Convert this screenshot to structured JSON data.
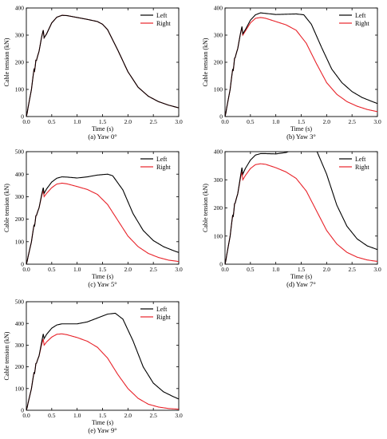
{
  "colors": {
    "left": "#000000",
    "right": "#e8232a"
  },
  "chart_data": [
    {
      "type": "line",
      "caption": "(a) Yaw 0°",
      "xlabel": "Time (s)",
      "ylabel": "Cable tension (kN)",
      "xlim": [
        0,
        3.0
      ],
      "ylim": [
        0,
        400
      ],
      "xticks": [
        "0.0",
        "0.5",
        "1.0",
        "1.5",
        "2.0",
        "2.5",
        "3.0"
      ],
      "yticks": [
        "0",
        "100",
        "200",
        "300",
        "400"
      ],
      "legend": "top-right",
      "series": [
        {
          "name": "Left",
          "color_key": "left",
          "x": [
            0,
            0.05,
            0.1,
            0.15,
            0.2,
            0.25,
            0.3,
            0.35,
            0.4,
            0.5,
            0.6,
            0.7,
            0.8,
            1.0,
            1.2,
            1.4,
            1.5,
            1.6,
            1.8,
            2.0,
            2.2,
            2.4,
            2.6,
            2.8,
            3.0
          ],
          "y": [
            0,
            40,
            80,
            150,
            190,
            240,
            270,
            290,
            305,
            345,
            366,
            373,
            372,
            365,
            358,
            350,
            340,
            320,
            245,
            165,
            108,
            75,
            55,
            42,
            32
          ]
        },
        {
          "name": "Right",
          "color_key": "right",
          "x": [
            0,
            0.05,
            0.1,
            0.15,
            0.2,
            0.25,
            0.3,
            0.35,
            0.4,
            0.5,
            0.6,
            0.7,
            0.8,
            1.0,
            1.2,
            1.4,
            1.5,
            1.6,
            1.8,
            2.0,
            2.2,
            2.4,
            2.6,
            2.8,
            3.0
          ],
          "y": [
            0,
            40,
            80,
            150,
            190,
            240,
            270,
            290,
            305,
            345,
            366,
            373,
            372,
            365,
            358,
            350,
            340,
            320,
            245,
            165,
            108,
            75,
            55,
            42,
            32
          ]
        }
      ]
    },
    {
      "type": "line",
      "caption": "(b) Yaw 3°",
      "xlabel": "Time (s)",
      "ylabel": "Cable tension (kN)",
      "xlim": [
        0,
        3.0
      ],
      "ylim": [
        0,
        400
      ],
      "xticks": [
        "0.0",
        "0.5",
        "1.0",
        "1.5",
        "2.0",
        "2.5",
        "3.0"
      ],
      "yticks": [
        "0",
        "100",
        "200",
        "300",
        "400"
      ],
      "legend": "top-right",
      "series": [
        {
          "name": "Left",
          "color_key": "left",
          "x": [
            0,
            0.05,
            0.1,
            0.15,
            0.2,
            0.25,
            0.3,
            0.35,
            0.4,
            0.5,
            0.6,
            0.7,
            0.8,
            1.0,
            1.2,
            1.4,
            1.55,
            1.7,
            1.9,
            2.1,
            2.3,
            2.5,
            2.7,
            2.9,
            3.0
          ],
          "y": [
            0,
            40,
            80,
            150,
            200,
            250,
            280,
            305,
            320,
            355,
            375,
            382,
            380,
            376,
            377,
            378,
            375,
            340,
            255,
            175,
            125,
            92,
            70,
            55,
            48
          ]
        },
        {
          "name": "Right",
          "color_key": "right",
          "x": [
            0,
            0.05,
            0.1,
            0.15,
            0.2,
            0.25,
            0.3,
            0.35,
            0.4,
            0.5,
            0.6,
            0.7,
            0.8,
            1.0,
            1.2,
            1.4,
            1.6,
            1.8,
            2.0,
            2.2,
            2.4,
            2.6,
            2.8,
            3.0
          ],
          "y": [
            0,
            40,
            80,
            150,
            200,
            250,
            280,
            300,
            315,
            345,
            362,
            365,
            362,
            350,
            338,
            318,
            270,
            195,
            125,
            82,
            55,
            38,
            26,
            18
          ]
        }
      ]
    },
    {
      "type": "line",
      "caption": "(c) Yaw 5°",
      "xlabel": "Time (s)",
      "ylabel": "Cable tension (kN)",
      "xlim": [
        0,
        3.0
      ],
      "ylim": [
        0,
        500
      ],
      "xticks": [
        "0.0",
        "0.5",
        "1.0",
        "1.5",
        "2.0",
        "2.5",
        "3.0"
      ],
      "yticks": [
        "0",
        "100",
        "200",
        "300",
        "400",
        "500"
      ],
      "legend": "top-right",
      "series": [
        {
          "name": "Left",
          "color_key": "left",
          "x": [
            0,
            0.05,
            0.1,
            0.15,
            0.2,
            0.25,
            0.3,
            0.35,
            0.4,
            0.5,
            0.6,
            0.7,
            0.8,
            1.0,
            1.2,
            1.4,
            1.6,
            1.7,
            1.9,
            2.1,
            2.3,
            2.5,
            2.7,
            2.9,
            3.0
          ],
          "y": [
            0,
            40,
            80,
            150,
            200,
            250,
            285,
            315,
            335,
            365,
            382,
            388,
            387,
            383,
            388,
            396,
            400,
            393,
            330,
            225,
            150,
            105,
            78,
            60,
            52
          ]
        },
        {
          "name": "Right",
          "color_key": "right",
          "x": [
            0,
            0.05,
            0.1,
            0.15,
            0.2,
            0.25,
            0.3,
            0.35,
            0.4,
            0.5,
            0.6,
            0.7,
            0.8,
            1.0,
            1.2,
            1.4,
            1.6,
            1.8,
            2.0,
            2.2,
            2.4,
            2.6,
            2.8,
            3.0
          ],
          "y": [
            0,
            40,
            80,
            150,
            200,
            250,
            280,
            300,
            315,
            340,
            356,
            360,
            357,
            345,
            332,
            310,
            265,
            195,
            125,
            78,
            48,
            30,
            18,
            12
          ]
        }
      ]
    },
    {
      "type": "line",
      "caption": "(d) Yaw 7°",
      "xlabel": "Time (s)",
      "ylabel": "Cable tension (kN)",
      "xlim": [
        0,
        3.0
      ],
      "ylim": [
        0,
        400
      ],
      "xticks": [
        "0.0",
        "0.5",
        "1.0",
        "1.5",
        "2.0",
        "2.5",
        "3.0"
      ],
      "yticks": [
        "0",
        "100",
        "200",
        "300",
        "400"
      ],
      "legend": "top-right",
      "series": [
        {
          "name": "Left",
          "color_key": "left",
          "x": [
            0,
            0.05,
            0.1,
            0.15,
            0.2,
            0.25,
            0.3,
            0.35,
            0.4,
            0.5,
            0.6,
            0.7,
            0.8,
            1.0,
            1.2,
            1.4,
            1.6,
            1.7,
            1.8,
            2.0,
            2.2,
            2.4,
            2.6,
            2.8,
            3.0
          ],
          "y": [
            0,
            40,
            80,
            150,
            200,
            250,
            285,
            320,
            340,
            370,
            388,
            393,
            393,
            392,
            397,
            410,
            420,
            420,
            405,
            320,
            210,
            135,
            90,
            65,
            52
          ]
        },
        {
          "name": "Right",
          "color_key": "right",
          "x": [
            0,
            0.05,
            0.1,
            0.15,
            0.2,
            0.25,
            0.3,
            0.35,
            0.4,
            0.5,
            0.6,
            0.7,
            0.8,
            1.0,
            1.2,
            1.4,
            1.6,
            1.8,
            2.0,
            2.2,
            2.4,
            2.6,
            2.8,
            3.0
          ],
          "y": [
            0,
            40,
            80,
            150,
            200,
            250,
            280,
            300,
            315,
            340,
            354,
            357,
            355,
            343,
            328,
            305,
            260,
            190,
            120,
            72,
            42,
            25,
            15,
            10
          ]
        }
      ]
    },
    {
      "type": "line",
      "caption": "(e) Yaw 9°",
      "xlabel": "Time (s)",
      "ylabel": "Cable tension (kN)",
      "xlim": [
        0,
        3.0
      ],
      "ylim": [
        0,
        500
      ],
      "xticks": [
        "0.0",
        "0.5",
        "1.0",
        "1.5",
        "2.0",
        "2.5",
        "3.0"
      ],
      "yticks": [
        "0",
        "100",
        "200",
        "300",
        "400",
        "500"
      ],
      "legend": "top-right",
      "series": [
        {
          "name": "Left",
          "color_key": "left",
          "x": [
            0,
            0.05,
            0.1,
            0.15,
            0.2,
            0.25,
            0.3,
            0.35,
            0.4,
            0.5,
            0.6,
            0.7,
            0.8,
            1.0,
            1.2,
            1.4,
            1.6,
            1.75,
            1.9,
            2.1,
            2.3,
            2.5,
            2.7,
            2.9,
            3.0
          ],
          "y": [
            0,
            40,
            80,
            150,
            200,
            250,
            290,
            330,
            350,
            378,
            393,
            398,
            398,
            398,
            407,
            425,
            443,
            447,
            420,
            320,
            200,
            125,
            85,
            62,
            52
          ]
        },
        {
          "name": "Right",
          "color_key": "right",
          "x": [
            0,
            0.05,
            0.1,
            0.15,
            0.2,
            0.25,
            0.3,
            0.35,
            0.4,
            0.5,
            0.6,
            0.7,
            0.8,
            1.0,
            1.2,
            1.4,
            1.6,
            1.8,
            2.0,
            2.2,
            2.4,
            2.6,
            2.8,
            3.0
          ],
          "y": [
            0,
            40,
            80,
            150,
            200,
            250,
            280,
            300,
            315,
            337,
            350,
            352,
            348,
            335,
            318,
            290,
            240,
            165,
            100,
            55,
            28,
            15,
            8,
            5
          ]
        }
      ]
    }
  ]
}
